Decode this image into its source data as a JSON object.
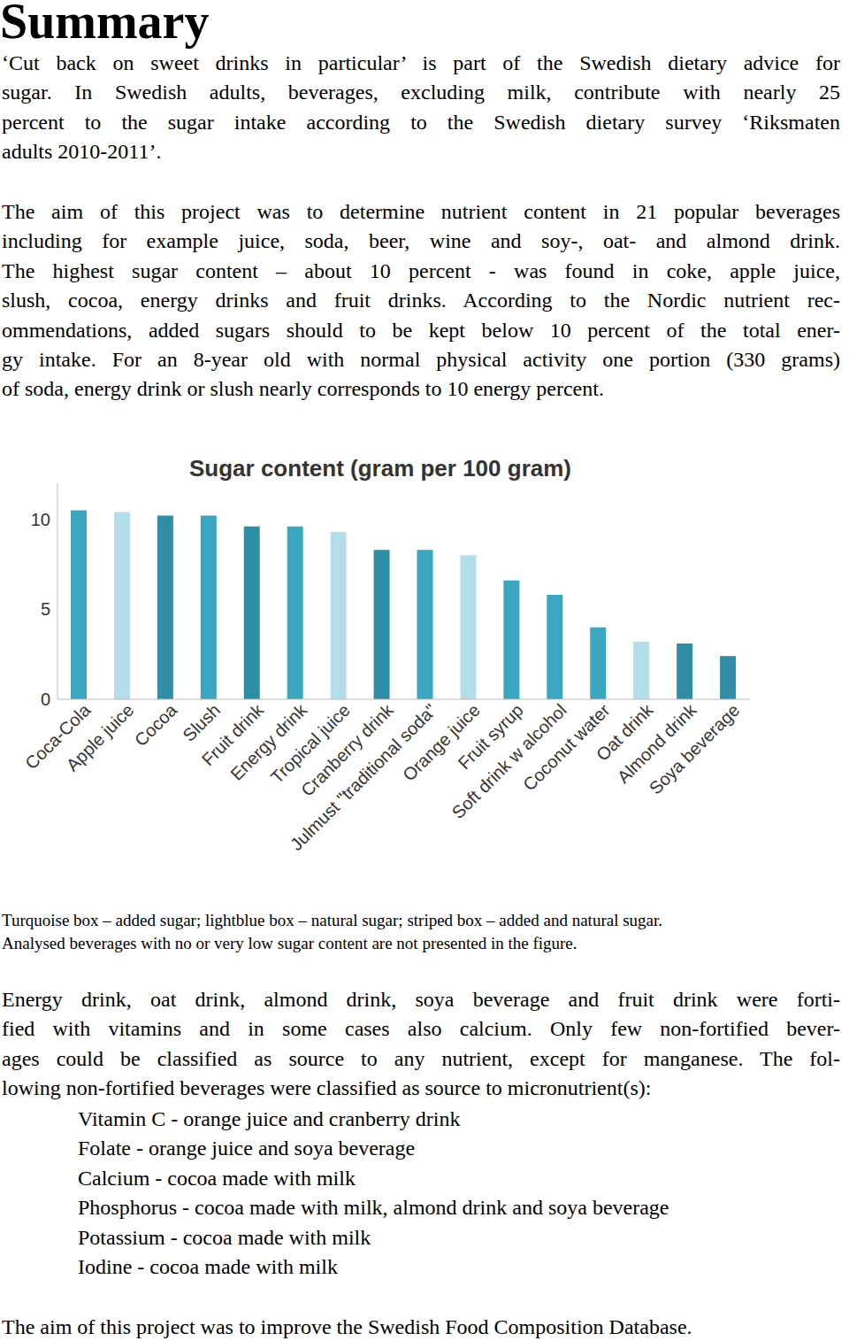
{
  "title": "Summary",
  "intro": [
    [
      "‘Cut back on sweet drinks in particular’ is part of the Swedish dietary advice for",
      "sugar. In Swedish adults, beverages, excluding milk, contribute with nearly 25",
      "percent to the sugar intake according to the Swedish dietary survey ‘Riksmaten",
      "adults 2010-2011’."
    ],
    [
      "The aim of this project was to determine nutrient content in 21 popular beverages",
      "including for example juice, soda, beer, wine and soy-, oat- and almond drink.",
      "The highest sugar content – about 10 percent - was found in coke, apple juice,",
      "slush, cocoa, energy drinks and fruit drinks. According to the Nordic nutrient rec-",
      "ommendations, added sugars should to be kept below 10 percent of the total ener-",
      "gy intake. For an 8-year old with normal physical activity one portion (330 grams)",
      "of soda, energy drink or slush nearly corresponds to 10 energy percent."
    ]
  ],
  "chart_data": {
    "type": "bar",
    "title": "Sugar content (gram per 100 gram)",
    "categories": [
      "Coca-Cola",
      "Apple juice",
      "Cocoa",
      "Slush",
      "Fruit drink",
      "Energy drink",
      "Tropical juice",
      "Cranberry drink",
      "Julmust \"traditional soda\"",
      "Orange juice",
      "Fruit syrup",
      "Soft drink w alcohol",
      "Coconut water",
      "Oat drink",
      "Almond drink",
      "Soya beverage"
    ],
    "values": [
      10.5,
      10.4,
      10.2,
      10.2,
      9.6,
      9.6,
      9.3,
      8.3,
      8.3,
      8.0,
      6.6,
      5.8,
      4.0,
      3.2,
      3.1,
      2.4
    ],
    "colors": [
      "#3aa6bf",
      "#b3dde8",
      "#2f8ea6",
      "#3aa6bf",
      "#2f8ea6",
      "#3aa6bf",
      "#b3dde8",
      "#2f8ea6",
      "#3aa6bf",
      "#b3dde8",
      "#3aa6bf",
      "#3aa6bf",
      "#3aa6bf",
      "#b3dde8",
      "#2f8ea6",
      "#2f8ea6"
    ],
    "ylim": [
      0,
      12
    ],
    "yticks": [
      0,
      5,
      10
    ],
    "grid": false
  },
  "caption": [
    "Turquoise box – added sugar; lightblue box – natural sugar; striped box – added and natural sugar.",
    "Analysed beverages with no or very low sugar content are not presented in the figure."
  ],
  "body": [
    "Energy drink, oat drink, almond drink, soya beverage and fruit drink were forti-",
    "fied with vitamins and in some cases also calcium. Only few non-fortified bever-",
    "ages could be classified as source to any nutrient, except for manganese. The fol-",
    "lowing non-fortified beverages were classified as source to micronutrient(s):"
  ],
  "list": [
    "Vitamin C - orange juice and cranberry drink",
    "Folate - orange juice and soya beverage",
    "Calcium - cocoa made with milk",
    "Phosphorus - cocoa made with milk, almond drink and soya beverage",
    "Potassium - cocoa made with milk",
    "Iodine - cocoa made with milk"
  ],
  "closing": "The aim of this project was to improve the Swedish Food Composition Database."
}
